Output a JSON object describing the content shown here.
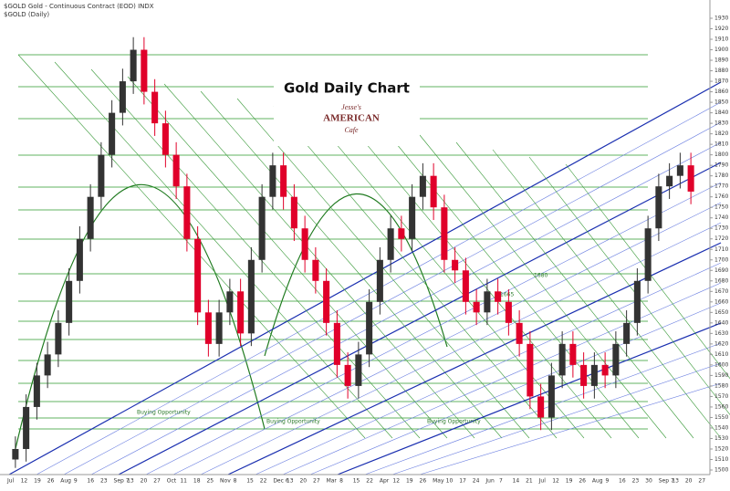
{
  "header": {
    "symbol": "$GOLD Gold - Continuous Contract (EOD) INDX",
    "period": "$GOLD (Daily)"
  },
  "logo": {
    "line1": "Jesse's",
    "line2": "AMERICAN",
    "line3": "Cafe"
  },
  "chart_data": {
    "type": "candlestick",
    "title": "Gold Daily Chart",
    "x_labels": [
      "Jul",
      "12",
      "19",
      "26",
      "Aug",
      "9",
      "16",
      "23",
      "Sep 7",
      "13",
      "20",
      "27",
      "Oct",
      "11",
      "18",
      "25",
      "Nov",
      "8",
      "15",
      "22",
      "Dec 6",
      "13",
      "20",
      "27",
      "Mar",
      "8",
      "15",
      "22",
      "Apr",
      "12",
      "19",
      "26",
      "May",
      "10",
      "17",
      "24",
      "Jun",
      "7",
      "14",
      "21",
      "Jul",
      "12",
      "19",
      "26",
      "Aug",
      "9",
      "16",
      "23",
      "30",
      "Sep 7",
      "13",
      "20",
      "27"
    ],
    "open": [
      1510,
      1520,
      1560,
      1590,
      1610,
      1640,
      1680,
      1720,
      1760,
      1800,
      1840,
      1870,
      1900,
      1860,
      1830,
      1800,
      1770,
      1720,
      1650,
      1620,
      1650,
      1670,
      1630,
      1700,
      1760,
      1790,
      1760,
      1730,
      1700,
      1680,
      1640,
      1600,
      1580,
      1610,
      1660,
      1700,
      1730,
      1720,
      1760,
      1780,
      1750,
      1700,
      1690,
      1660,
      1650,
      1670,
      1660,
      1640,
      1620,
      1570,
      1550,
      1590,
      1620,
      1600,
      1580,
      1600,
      1590,
      1620,
      1640,
      1680,
      1730,
      1770,
      1780,
      1790
    ],
    "high": [
      1532,
      1572,
      1602,
      1622,
      1652,
      1692,
      1732,
      1772,
      1812,
      1852,
      1882,
      1912,
      1912,
      1872,
      1842,
      1812,
      1782,
      1732,
      1662,
      1662,
      1682,
      1682,
      1712,
      1772,
      1802,
      1802,
      1772,
      1742,
      1712,
      1692,
      1652,
      1612,
      1622,
      1672,
      1712,
      1742,
      1742,
      1772,
      1792,
      1792,
      1762,
      1712,
      1702,
      1672,
      1682,
      1682,
      1672,
      1652,
      1632,
      1582,
      1602,
      1632,
      1632,
      1612,
      1612,
      1612,
      1632,
      1652,
      1692,
      1742,
      1782,
      1792,
      1802,
      1802
    ],
    "low": [
      1502,
      1508,
      1548,
      1578,
      1598,
      1628,
      1668,
      1708,
      1748,
      1788,
      1828,
      1858,
      1848,
      1818,
      1788,
      1758,
      1708,
      1638,
      1608,
      1608,
      1638,
      1618,
      1618,
      1688,
      1748,
      1748,
      1718,
      1688,
      1668,
      1628,
      1588,
      1568,
      1568,
      1598,
      1648,
      1688,
      1708,
      1708,
      1748,
      1738,
      1688,
      1678,
      1648,
      1638,
      1638,
      1648,
      1628,
      1608,
      1558,
      1538,
      1538,
      1578,
      1588,
      1568,
      1568,
      1578,
      1578,
      1608,
      1628,
      1668,
      1718,
      1758,
      1768,
      1753
    ],
    "close": [
      1520,
      1560,
      1590,
      1610,
      1640,
      1680,
      1720,
      1760,
      1800,
      1840,
      1870,
      1900,
      1860,
      1830,
      1800,
      1770,
      1720,
      1650,
      1620,
      1650,
      1670,
      1630,
      1700,
      1760,
      1790,
      1760,
      1730,
      1700,
      1680,
      1640,
      1600,
      1580,
      1610,
      1660,
      1700,
      1730,
      1720,
      1760,
      1780,
      1750,
      1700,
      1690,
      1660,
      1650,
      1670,
      1660,
      1640,
      1620,
      1570,
      1550,
      1590,
      1620,
      1600,
      1580,
      1600,
      1590,
      1620,
      1640,
      1680,
      1730,
      1770,
      1780,
      1790,
      1765
    ],
    "up_color": "#333333",
    "down_color": "#e0002a",
    "ylim": [
      1500,
      1930
    ],
    "yticks": [
      1500,
      1510,
      1520,
      1530,
      1540,
      1550,
      1560,
      1570,
      1580,
      1590,
      1600,
      1610,
      1620,
      1630,
      1640,
      1650,
      1660,
      1670,
      1680,
      1690,
      1700,
      1710,
      1720,
      1730,
      1740,
      1750,
      1760,
      1770,
      1780,
      1790,
      1800,
      1810,
      1820,
      1830,
      1840,
      1850,
      1860,
      1870,
      1880,
      1890,
      1900,
      1910,
      1920,
      1930
    ],
    "annotations": [
      "Buying Opportunity",
      "Buying Opportunity",
      "Buying Opportunity",
      "1680",
      "1665"
    ]
  }
}
